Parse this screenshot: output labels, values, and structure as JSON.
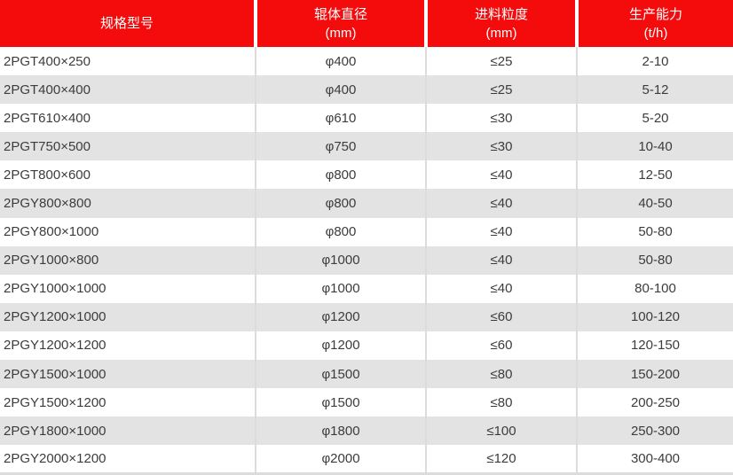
{
  "colors": {
    "header_bg": "#f40b0b",
    "header_text": "#ffffff",
    "row_bg": "#ffffff",
    "row_alt_bg": "#e3e3e3",
    "divider": "#dcdcdc",
    "body_text": "#3c3c3c"
  },
  "chart_data": {
    "type": "table",
    "title": "",
    "columns": [
      {
        "title": "规格型号",
        "unit": ""
      },
      {
        "title": "辊体直径",
        "unit": "(mm)"
      },
      {
        "title": "进料粒度",
        "unit": "(mm)"
      },
      {
        "title": "生产能力",
        "unit": "(t/h)"
      }
    ],
    "rows": [
      [
        "2PGT400×250",
        "φ400",
        "≤25",
        "2-10"
      ],
      [
        "2PGT400×400",
        "φ400",
        "≤25",
        "5-12"
      ],
      [
        "2PGT610×400",
        "φ610",
        "≤30",
        "5-20"
      ],
      [
        "2PGT750×500",
        "φ750",
        "≤30",
        "10-40"
      ],
      [
        "2PGT800×600",
        "φ800",
        "≤40",
        "12-50"
      ],
      [
        "2PGY800×800",
        "φ800",
        "≤40",
        "40-50"
      ],
      [
        "2PGY800×1000",
        "φ800",
        "≤40",
        "50-80"
      ],
      [
        "2PGY1000×800",
        "φ1000",
        "≤40",
        "50-80"
      ],
      [
        "2PGY1000×1000",
        "φ1000",
        "≤40",
        "80-100"
      ],
      [
        "2PGY1200×1000",
        "φ1200",
        "≤60",
        "100-120"
      ],
      [
        "2PGY1200×1200",
        "φ1200",
        "≤60",
        "120-150"
      ],
      [
        "2PGY1500×1000",
        "φ1500",
        "≤80",
        "150-200"
      ],
      [
        "2PGY1500×1200",
        "φ1500",
        "≤80",
        "200-250"
      ],
      [
        "2PGY1800×1000",
        "φ1800",
        "≤100",
        "250-300"
      ],
      [
        "2PGY2000×1200",
        "φ2000",
        "≤120",
        "300-400"
      ]
    ]
  }
}
